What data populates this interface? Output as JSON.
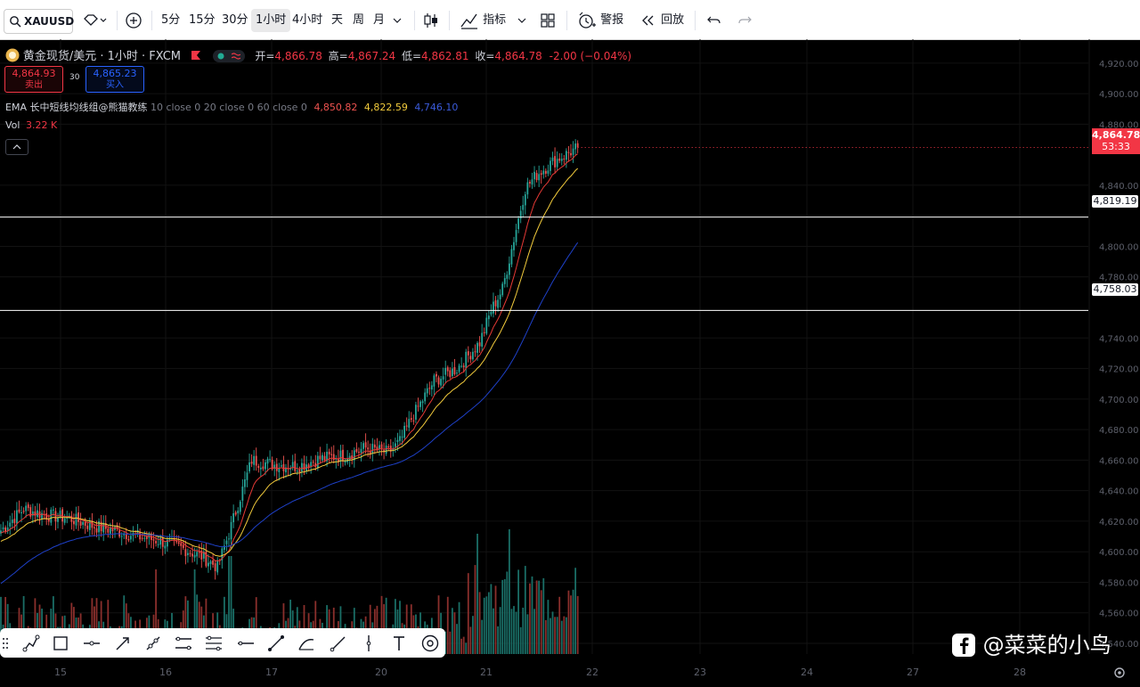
{
  "toolbar": {
    "symbol": "XAUUSD",
    "intervals": [
      "5分",
      "15分",
      "30分",
      "1小时",
      "4小时",
      "天",
      "周",
      "月"
    ],
    "active_interval": "1小时",
    "indicators_label": "指标",
    "alert_label": "警报",
    "replay_label": "回放"
  },
  "legend": {
    "title": "黄金现货/美元 · 1小时 · FXCM",
    "open_label": "开=",
    "open": "4,866.78",
    "high_label": "高=",
    "high": "4,867.24",
    "low_label": "低=",
    "low": "4,862.81",
    "close_label": "收=",
    "close": "4,864.78",
    "change": "-2.00 (−0.04%)"
  },
  "trade": {
    "sell_price": "4,864.93",
    "sell_label": "卖出",
    "spread": "30",
    "buy_price": "4,865.23",
    "buy_label": "买入"
  },
  "ema": {
    "name": "EMA 长中短线均线组@熊猫教练",
    "params": "10 close 0 20 close 0 60 close 0",
    "v1": "4,850.82",
    "v2": "4,822.59",
    "v3": "4,746.10"
  },
  "vol": {
    "label": "Vol",
    "value": "3.22 K"
  },
  "price_axis": {
    "ticks": [
      "4,920.00",
      "4,900.00",
      "4,880.00",
      "4,840.00",
      "4,800.00",
      "4,780.00",
      "4,740.00",
      "4,720.00",
      "4,700.00",
      "4,680.00",
      "4,660.00",
      "4,640.00",
      "4,620.00",
      "4,600.00",
      "4,580.00",
      "4,560.00",
      "4,540.00"
    ],
    "last_price": "4,864.78",
    "countdown": "53:33",
    "hline1": "4,819.19",
    "hline2": "4,758.03"
  },
  "time_axis": {
    "ticks": [
      "15",
      "16",
      "17",
      "20",
      "21",
      "22",
      "23",
      "24",
      "27",
      "28"
    ]
  },
  "watermark": "@菜菜的小鸟",
  "colors": {
    "up": "#26a69a",
    "down": "#ef5350",
    "ema10": "#e53935",
    "ema20": "#f2cb3c",
    "ema60": "#1e40c8"
  },
  "chart_data": {
    "type": "candlestick",
    "symbol": "XAUUSD",
    "timeframe": "1小时",
    "ylim": [
      4533,
      4931
    ],
    "x_ticks": [
      "15",
      "16",
      "17",
      "20",
      "21",
      "22",
      "23",
      "24",
      "27",
      "28"
    ],
    "last_close": 4864.78,
    "horizontal_lines": [
      4819.19,
      4758.03
    ],
    "anchors": [
      [
        0,
        4614
      ],
      [
        10,
        4628
      ],
      [
        20,
        4624
      ],
      [
        30,
        4622
      ],
      [
        40,
        4617
      ],
      [
        50,
        4614
      ],
      [
        60,
        4610
      ],
      [
        70,
        4607
      ],
      [
        80,
        4602
      ],
      [
        88,
        4597
      ],
      [
        95,
        4590
      ],
      [
        100,
        4612
      ],
      [
        110,
        4660
      ],
      [
        120,
        4657
      ],
      [
        130,
        4656
      ],
      [
        140,
        4661
      ],
      [
        150,
        4663
      ],
      [
        160,
        4668
      ],
      [
        170,
        4665
      ],
      [
        175,
        4672
      ],
      [
        180,
        4687
      ],
      [
        190,
        4712
      ],
      [
        200,
        4720
      ],
      [
        210,
        4737
      ],
      [
        215,
        4758
      ],
      [
        220,
        4772
      ],
      [
        225,
        4805
      ],
      [
        230,
        4838
      ],
      [
        235,
        4847
      ],
      [
        240,
        4853
      ],
      [
        245,
        4858
      ],
      [
        250,
        4862
      ],
      [
        253,
        4864.78
      ]
    ],
    "ema_final": {
      "ema10": 4850.82,
      "ema20": 4822.59,
      "ema60": 4746.1
    },
    "volume_last_k": 3.22
  }
}
